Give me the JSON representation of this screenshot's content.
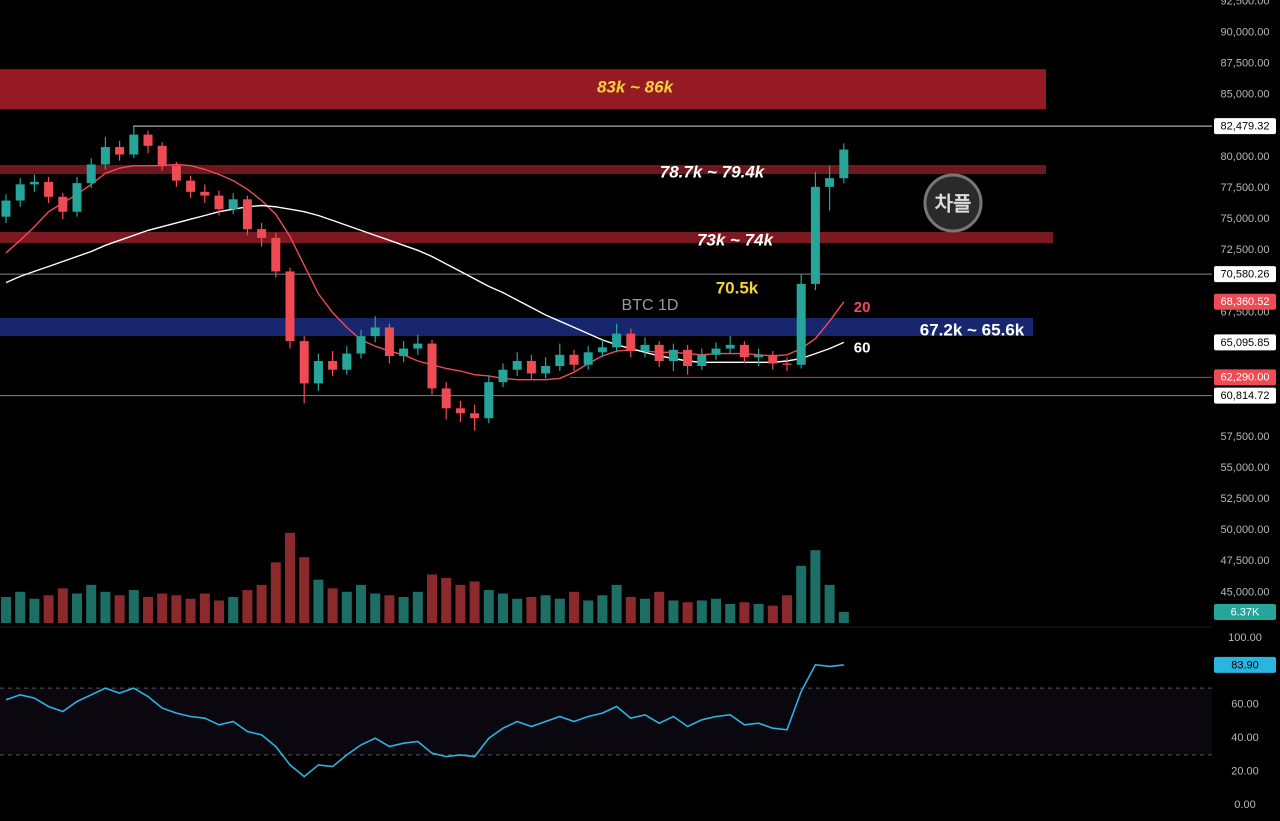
{
  "chart_data": [
    {
      "type": "candlestick",
      "ylim": [
        42380,
        92620
      ],
      "yticks": [
        {
          "value": 92500,
          "label": "92,500.00"
        },
        {
          "value": 90000,
          "label": "90,000.00"
        },
        {
          "value": 87500,
          "label": "87,500.00"
        },
        {
          "value": 85000,
          "label": "85,000.00"
        },
        {
          "value": 80000,
          "label": "80,000.00"
        },
        {
          "value": 77500,
          "label": "77,500.00"
        },
        {
          "value": 75000,
          "label": "75,000.00"
        },
        {
          "value": 72500,
          "label": "72,500.00"
        },
        {
          "value": 67500,
          "label": "67,500.00"
        },
        {
          "value": 57500,
          "label": "57,500.00"
        },
        {
          "value": 55000,
          "label": "55,000.00"
        },
        {
          "value": 52500,
          "label": "52,500.00"
        },
        {
          "value": 50000,
          "label": "50,000.00"
        },
        {
          "value": 47500,
          "label": "47,500.00"
        },
        {
          "value": 45000,
          "label": "45,000.00"
        }
      ],
      "up_color": "#26a69a",
      "down_color": "#ef4b55",
      "open": [
        75200,
        76500,
        77800,
        78000,
        76800,
        75600,
        77900,
        79400,
        80800,
        80200,
        81800,
        80900,
        79300,
        78100,
        77200,
        76900,
        75800,
        76600,
        74200,
        73500,
        70800,
        65200,
        61800,
        63600,
        62900,
        64200,
        65600,
        66300,
        64000,
        64600,
        65000,
        61400,
        59800,
        59400,
        59000,
        61900,
        62900,
        63600,
        62600,
        63200,
        64100,
        63300,
        64300,
        64700,
        65800,
        64400,
        64900,
        63600,
        64500,
        63200,
        64100,
        64600,
        64900,
        63900,
        64100,
        63400,
        63300,
        69800,
        77600,
        78300
      ],
      "high": [
        77000,
        78300,
        78600,
        78400,
        77100,
        78400,
        79900,
        81600,
        81300,
        82480,
        82100,
        81200,
        79600,
        78500,
        77800,
        77300,
        77100,
        76900,
        74700,
        73900,
        71100,
        65600,
        64200,
        64400,
        64800,
        66100,
        67200,
        66600,
        65200,
        65700,
        65300,
        61900,
        60400,
        60100,
        62400,
        63400,
        64300,
        64100,
        63900,
        65000,
        64500,
        64800,
        65300,
        66600,
        66200,
        65500,
        65200,
        65000,
        64900,
        64600,
        65100,
        65600,
        65200,
        64600,
        64400,
        63900,
        70600,
        78800,
        79300,
        81100
      ],
      "low": [
        74700,
        76000,
        77200,
        76300,
        75000,
        75200,
        77500,
        79000,
        79700,
        79900,
        80300,
        78900,
        77600,
        76700,
        76300,
        75300,
        75400,
        73700,
        72800,
        70300,
        64600,
        60200,
        61200,
        62400,
        62500,
        63800,
        65100,
        63400,
        63500,
        64100,
        60900,
        58900,
        58700,
        58000,
        58600,
        61500,
        62400,
        62100,
        62200,
        62800,
        62800,
        62900,
        63900,
        64300,
        63900,
        63900,
        63100,
        62800,
        62500,
        62900,
        63700,
        64200,
        63400,
        63200,
        62900,
        62800,
        63000,
        69300,
        75700,
        77900
      ],
      "close": [
        76500,
        77800,
        78000,
        76800,
        75600,
        77900,
        79400,
        80800,
        80200,
        81800,
        80900,
        79300,
        78100,
        77200,
        76900,
        75800,
        76600,
        74200,
        73500,
        70800,
        65200,
        61800,
        63600,
        62900,
        64200,
        65600,
        66300,
        64000,
        64600,
        65000,
        61400,
        59800,
        59400,
        59000,
        61900,
        62900,
        63600,
        62600,
        63200,
        64100,
        63300,
        64300,
        64700,
        65800,
        64400,
        64900,
        63600,
        64500,
        63200,
        64100,
        64600,
        64900,
        63900,
        64100,
        63400,
        63300,
        69800,
        77600,
        78300,
        80600
      ],
      "series": [
        {
          "name": "20",
          "color": "#ef4b55",
          "last_value_label": "68,360.52",
          "values": [
            72300,
            73300,
            74400,
            75600,
            76300,
            77000,
            77800,
            78700,
            79100,
            79300,
            79300,
            79300,
            79400,
            79300,
            79000,
            78600,
            78100,
            77400,
            76500,
            75400,
            73600,
            71300,
            69000,
            67500,
            66300,
            65300,
            64800,
            64400,
            64100,
            63600,
            63300,
            63000,
            62800,
            62500,
            62400,
            62200,
            62100,
            62100,
            62100,
            62200,
            62700,
            63400,
            64000,
            64400,
            64500,
            64400,
            64300,
            64300,
            64200,
            64100,
            64200,
            64200,
            64200,
            64100,
            64000,
            64100,
            64600,
            65400,
            66800,
            68360.52
          ]
        },
        {
          "name": "60",
          "color": "#ffffff",
          "last_value_label": "65,095.85",
          "values": [
            69900,
            70400,
            70800,
            71200,
            71600,
            72000,
            72400,
            72900,
            73300,
            73700,
            74100,
            74400,
            74700,
            75000,
            75300,
            75600,
            75800,
            76000,
            76100,
            76000,
            75800,
            75600,
            75300,
            74900,
            74500,
            74100,
            73700,
            73300,
            72900,
            72500,
            72000,
            71400,
            70800,
            70200,
            69600,
            69100,
            68500,
            67900,
            67300,
            66800,
            66300,
            65800,
            65300,
            64900,
            64600,
            64300,
            64000,
            63800,
            63600,
            63500,
            63500,
            63500,
            63500,
            63500,
            63500,
            63600,
            63800,
            64200,
            64600,
            65095.85
          ]
        }
      ],
      "zones": [
        {
          "label": "83k ~ 86k",
          "high": 87060,
          "low": 83850,
          "color": "#a51d27",
          "label_color": "#f5d33a"
        },
        {
          "label": "78.7k ~ 79.4k",
          "high": 79360,
          "low": 78630,
          "color": "#7a1a20",
          "label_color": "#ffffff"
        },
        {
          "label": "73k ~ 74k",
          "high": 73970,
          "low": 73090,
          "color": "#8a1c23",
          "label_color": "#ffffff"
        },
        {
          "label": "67.2k ~ 65.6k",
          "high": 67060,
          "low": 65610,
          "color": "#1b2a7a",
          "label_color": "#ffffff"
        }
      ],
      "price_lines": [
        {
          "value": 82479.32,
          "label": "82,479.32",
          "color": "#ffffff"
        },
        {
          "value": 70580.26,
          "label": "70,580.26",
          "color": "#9a9a9a"
        },
        {
          "value": 62290,
          "label": "62,290.00",
          "color": "#ef4b55"
        },
        {
          "value": 60814.72,
          "label": "60,814.72",
          "color": "#9a9a9a"
        }
      ],
      "annotations": [
        {
          "text": "70.5k",
          "color": "#f5d33a"
        },
        {
          "text": "BTC 1D",
          "color": "#9a9a9a"
        }
      ],
      "watermark": "차플"
    },
    {
      "type": "bar",
      "ylim": [
        0,
        60000
      ],
      "up_color": "#1d6f66",
      "down_color": "#8a2a2c",
      "last_value_label": "6.37K",
      "label_color": "#26a69a",
      "values": [
        15000,
        18000,
        14000,
        16000,
        20000,
        17000,
        22000,
        18000,
        16000,
        19000,
        15000,
        17000,
        16000,
        14000,
        17000,
        13000,
        15000,
        19000,
        22000,
        35000,
        52000,
        38000,
        25000,
        20000,
        18000,
        22000,
        17000,
        16000,
        15000,
        18000,
        28000,
        26000,
        22000,
        24000,
        19000,
        17000,
        14000,
        15000,
        16000,
        14000,
        18000,
        13000,
        16000,
        22000,
        15000,
        14000,
        18000,
        13000,
        12000,
        13000,
        14000,
        11000,
        12000,
        11000,
        10000,
        16000,
        33000,
        42000,
        22000,
        6370
      ]
    },
    {
      "type": "line",
      "ylim": [
        -9.6,
        106
      ],
      "color": "#2ab4e0",
      "levels": [
        30,
        70
      ],
      "last_value_label": "83.90",
      "yticks": [
        {
          "value": 100,
          "label": "100.00"
        },
        {
          "value": 60,
          "label": "60.00"
        },
        {
          "value": 40,
          "label": "40.00"
        },
        {
          "value": 20,
          "label": "20.00"
        },
        {
          "value": 0,
          "label": "0.00"
        }
      ],
      "values": [
        63,
        66,
        64,
        59,
        56,
        62,
        66,
        70,
        67,
        70,
        65,
        58,
        55,
        53,
        52,
        48,
        50,
        44,
        42,
        35,
        24,
        17,
        24,
        23,
        30,
        36,
        40,
        35,
        37,
        38,
        31,
        29,
        30,
        29,
        40,
        46,
        50,
        47,
        50,
        53,
        50,
        53,
        55,
        59,
        52,
        54,
        49,
        53,
        47,
        51,
        53,
        54,
        48,
        49,
        46,
        45,
        68,
        84,
        83,
        83.9
      ]
    }
  ]
}
